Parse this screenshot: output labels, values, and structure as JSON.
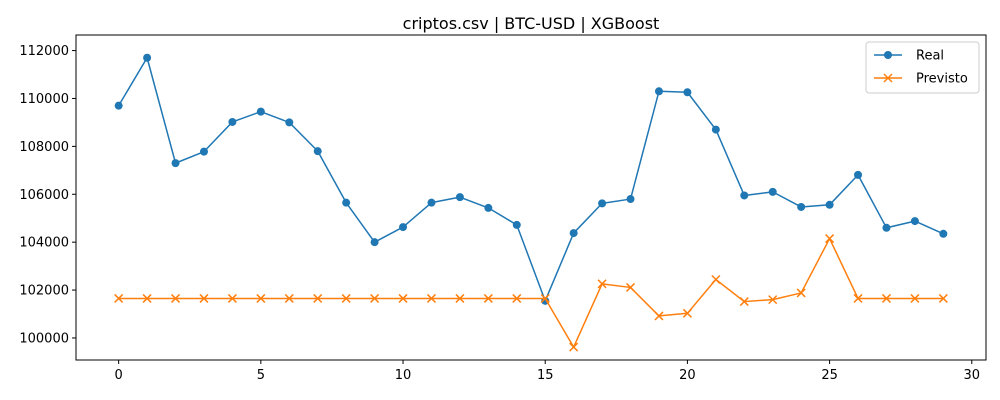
{
  "chart_data": {
    "type": "line",
    "title": "criptos.csv | BTC-USD | XGBoost",
    "xlabel": "",
    "ylabel": "",
    "x": [
      0,
      1,
      2,
      3,
      4,
      5,
      6,
      7,
      8,
      9,
      10,
      11,
      12,
      13,
      14,
      15,
      16,
      17,
      18,
      19,
      20,
      21,
      22,
      23,
      24,
      25,
      26,
      27,
      28,
      29
    ],
    "xlim": [
      -1.5,
      30.5
    ],
    "ylim": [
      99080,
      112650
    ],
    "xticks": [
      0,
      5,
      10,
      15,
      20,
      25,
      30
    ],
    "xtick_labels": [
      "0",
      "5",
      "10",
      "15",
      "20",
      "25",
      "30"
    ],
    "yticks": [
      100000,
      102000,
      104000,
      106000,
      108000,
      110000,
      112000
    ],
    "ytick_labels": [
      "100000",
      "102000",
      "104000",
      "106000",
      "108000",
      "110000",
      "112000"
    ],
    "grid": false,
    "legend_position": "top-right",
    "series": [
      {
        "name": "Real",
        "color": "#1f77b4",
        "marker": "circle",
        "values": [
          109700,
          111700,
          107300,
          107780,
          109020,
          109450,
          109000,
          107800,
          105650,
          104000,
          104630,
          105650,
          105880,
          105430,
          104720,
          101550,
          104380,
          105620,
          105800,
          110300,
          110260,
          108700,
          105950,
          106100,
          105470,
          105560,
          106810,
          104600,
          104880,
          104350
        ]
      },
      {
        "name": "Previsto",
        "color": "#ff7f0e",
        "marker": "x",
        "values": [
          101650,
          101650,
          101650,
          101650,
          101650,
          101650,
          101650,
          101650,
          101650,
          101650,
          101650,
          101650,
          101650,
          101650,
          101650,
          101650,
          99620,
          102260,
          102110,
          100920,
          101030,
          102440,
          101520,
          101600,
          101880,
          104150,
          101650,
          101650,
          101650,
          101650
        ]
      }
    ]
  }
}
